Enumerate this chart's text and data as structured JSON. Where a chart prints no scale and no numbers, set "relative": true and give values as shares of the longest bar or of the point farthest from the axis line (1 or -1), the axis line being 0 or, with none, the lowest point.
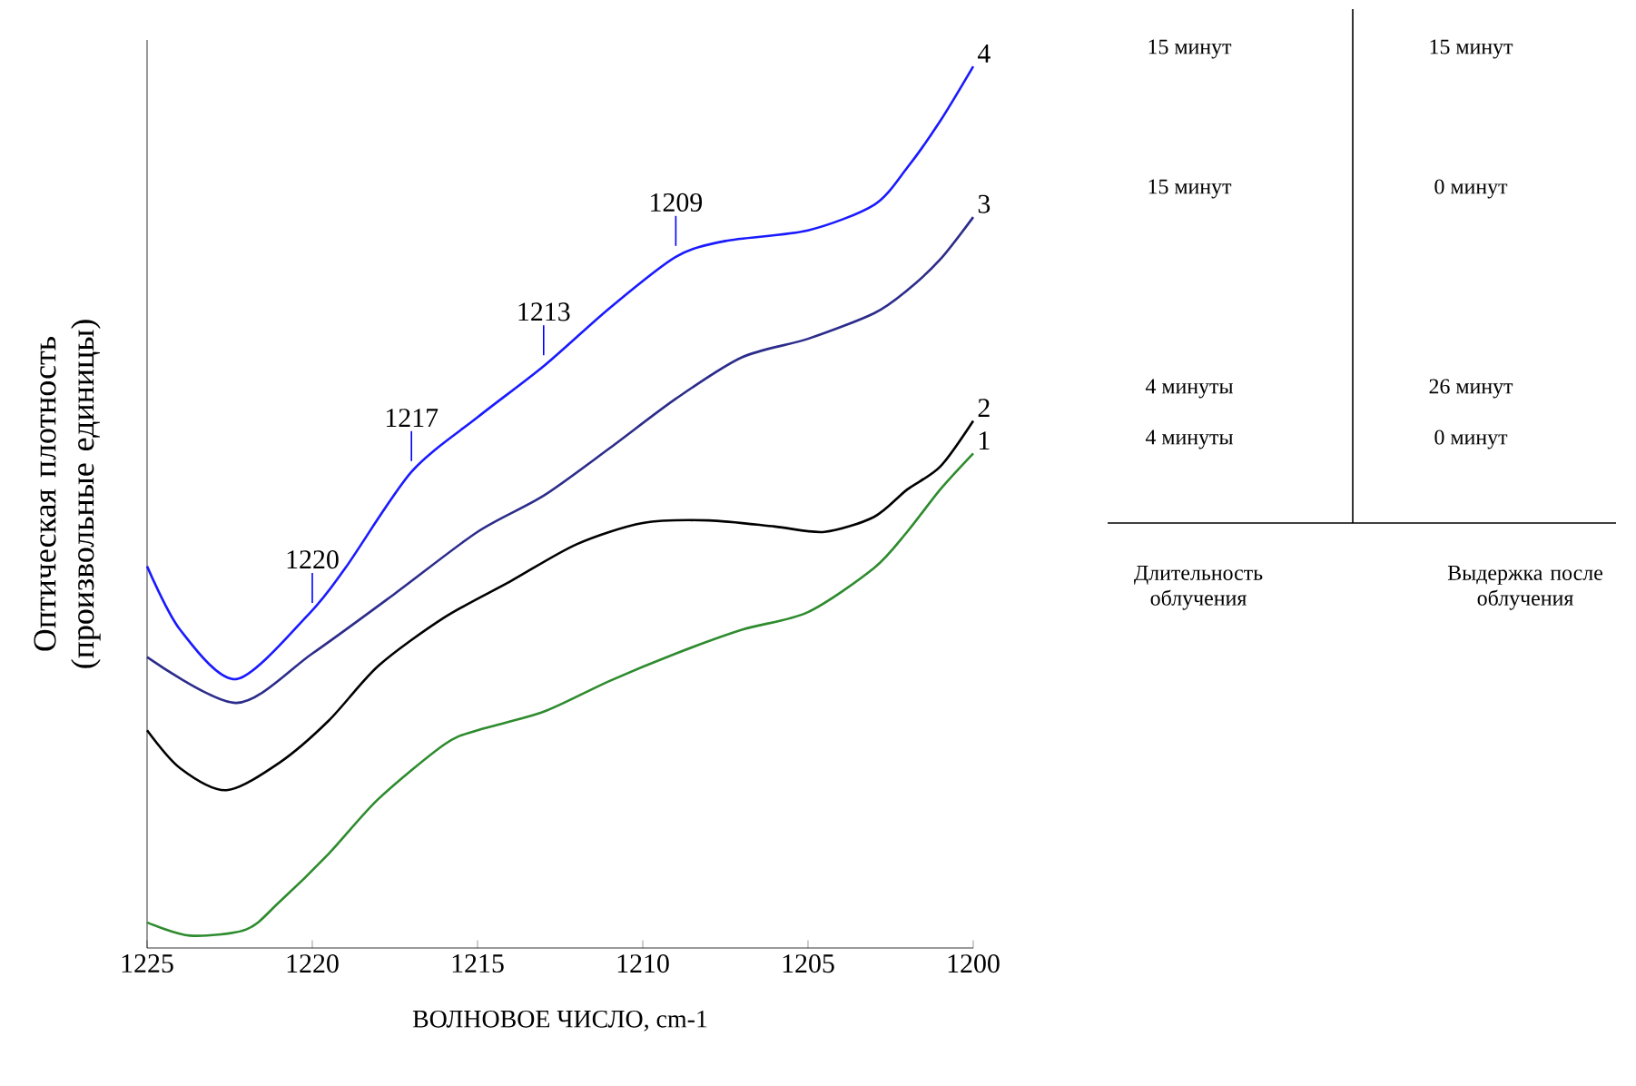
{
  "chart_data": {
    "type": "line",
    "relative": true,
    "xlabel": "ВОЛНОВОЕ ЧИСЛО, cm-1",
    "ylabel": "Оптическая плотность (произвольные единицы)",
    "xlim": [
      1225,
      1200
    ],
    "xticks": [
      1225,
      1220,
      1215,
      1210,
      1205,
      1200
    ],
    "series": [
      {
        "name": "1",
        "color": "#2e8b2e",
        "x": [
          1225,
          1223.7,
          1222,
          1221,
          1219.5,
          1218,
          1216,
          1215,
          1213,
          1211,
          1209,
          1207,
          1205,
          1203,
          1202,
          1201,
          1200
        ],
        "values": [
          0.029,
          0.014,
          0.021,
          0.052,
          0.107,
          0.169,
          0.231,
          0.247,
          0.268,
          0.303,
          0.334,
          0.361,
          0.381,
          0.431,
          0.472,
          0.52,
          0.561
        ]
      },
      {
        "name": "2",
        "color": "#000000",
        "x": [
          1225,
          1224,
          1222.6,
          1221,
          1219.5,
          1218,
          1216,
          1214,
          1212,
          1210,
          1208,
          1206,
          1204.5,
          1203,
          1202,
          1201,
          1200
        ],
        "values": [
          0.247,
          0.204,
          0.179,
          0.21,
          0.258,
          0.32,
          0.375,
          0.416,
          0.458,
          0.482,
          0.485,
          0.478,
          0.472,
          0.489,
          0.52,
          0.546,
          0.598
        ]
      },
      {
        "name": "3",
        "color": "#2c2c8c",
        "x": [
          1225,
          1222.3,
          1220,
          1217.5,
          1215,
          1213,
          1211,
          1209,
          1207,
          1205,
          1203,
          1202,
          1201,
          1200
        ],
        "values": [
          0.33,
          0.278,
          0.334,
          0.402,
          0.472,
          0.513,
          0.567,
          0.623,
          0.67,
          0.691,
          0.72,
          0.746,
          0.781,
          0.829
        ]
      },
      {
        "name": "4",
        "color": "#1a1aff",
        "x": [
          1225,
          1224,
          1222.3,
          1220.1,
          1219,
          1217,
          1215,
          1213,
          1211,
          1209,
          1207.5,
          1205,
          1203,
          1202,
          1201,
          1200
        ],
        "values": [
          0.433,
          0.361,
          0.305,
          0.379,
          0.431,
          0.54,
          0.602,
          0.66,
          0.726,
          0.784,
          0.802,
          0.814,
          0.843,
          0.885,
          0.938,
          1
        ]
      }
    ],
    "annotations": [
      {
        "text": "1220",
        "x": 1220,
        "y": 0.379
      },
      {
        "text": "1217",
        "x": 1217,
        "y": 0.54
      },
      {
        "text": "1213",
        "x": 1213,
        "y": 0.66
      },
      {
        "text": "1209",
        "x": 1209,
        "y": 0.784
      },
      "15 минут",
      "15 минут",
      "15 минут",
      "0 минут",
      "4 минуты",
      "26 минут",
      "4 минуты",
      "0 минут",
      "Длительность облучения",
      "Выдержка после облучения"
    ]
  }
}
